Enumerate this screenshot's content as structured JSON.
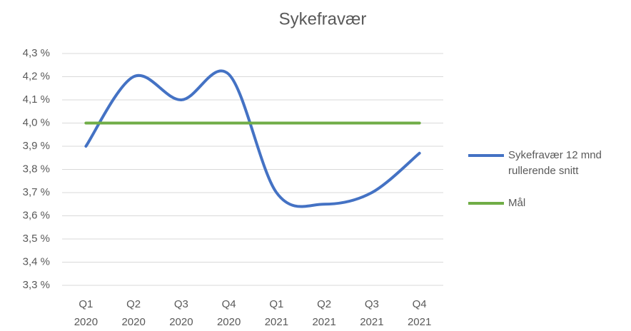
{
  "chart_data": {
    "type": "line",
    "title": "Sykefravær",
    "categories": [
      [
        "Q1",
        "2020"
      ],
      [
        "Q2",
        "2020"
      ],
      [
        "Q3",
        "2020"
      ],
      [
        "Q4",
        "2020"
      ],
      [
        "Q1",
        "2021"
      ],
      [
        "Q2",
        "2021"
      ],
      [
        "Q3",
        "2021"
      ],
      [
        "Q4",
        "2021"
      ]
    ],
    "series": [
      {
        "name": "Sykefravær 12 mnd rullerende snitt",
        "color": "#4472c4",
        "smooth": true,
        "values": [
          3.9,
          4.2,
          4.1,
          4.21,
          3.7,
          3.65,
          3.7,
          3.87
        ]
      },
      {
        "name": "Mål",
        "color": "#70ad47",
        "smooth": false,
        "values": [
          4.0,
          4.0,
          4.0,
          4.0,
          4.0,
          4.0,
          4.0,
          4.0
        ]
      }
    ],
    "ylim": [
      3.3,
      4.3
    ],
    "yticks": [
      {
        "value": 3.3,
        "label": "3,3 %"
      },
      {
        "value": 3.4,
        "label": "3,4 %"
      },
      {
        "value": 3.5,
        "label": "3,5 %"
      },
      {
        "value": 3.6,
        "label": "3,6 %"
      },
      {
        "value": 3.7,
        "label": "3,7 %"
      },
      {
        "value": 3.8,
        "label": "3,8 %"
      },
      {
        "value": 3.9,
        "label": "3,9 %"
      },
      {
        "value": 4.0,
        "label": "4,0 %"
      },
      {
        "value": 4.1,
        "label": "4,1 %"
      },
      {
        "value": 4.2,
        "label": "4,2 %"
      },
      {
        "value": 4.3,
        "label": "4,3 %"
      }
    ],
    "grid": true,
    "legend": "right"
  }
}
